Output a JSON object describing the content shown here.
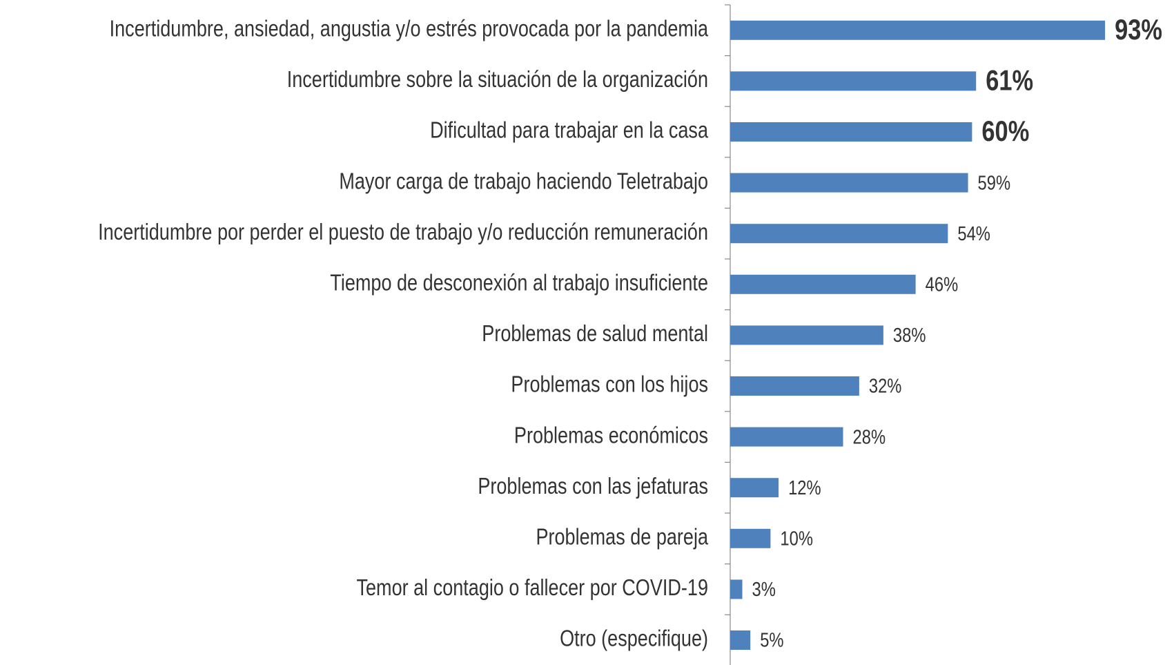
{
  "chart_data": {
    "type": "bar",
    "orientation": "horizontal",
    "categories": [
      "Incertidumbre, ansiedad, angustia y/o estrés provocada por la pandemia",
      "Incertidumbre sobre la situación de la organización",
      "Dificultad para trabajar en la casa",
      "Mayor carga de trabajo haciendo Teletrabajo",
      "Incertidumbre por perder el puesto de trabajo y/o reducción remuneración",
      "Tiempo de desconexión al trabajo insuficiente",
      "Problemas de salud mental",
      "Problemas con los hijos",
      "Problemas económicos",
      "Problemas con las jefaturas",
      "Problemas de pareja",
      "Temor al contagio o fallecer por COVID-19",
      "Otro (especifique)"
    ],
    "values": [
      93,
      61,
      60,
      59,
      54,
      46,
      38,
      32,
      28,
      12,
      10,
      3,
      5
    ],
    "value_labels": [
      "93%",
      "61%",
      "60%",
      "59%",
      "54%",
      "46%",
      "38%",
      "32%",
      "28%",
      "12%",
      "10%",
      "3%",
      "5%"
    ],
    "emphasized": [
      0,
      1,
      2
    ],
    "color": "#4f81bd",
    "xlim": [
      0,
      100
    ]
  }
}
